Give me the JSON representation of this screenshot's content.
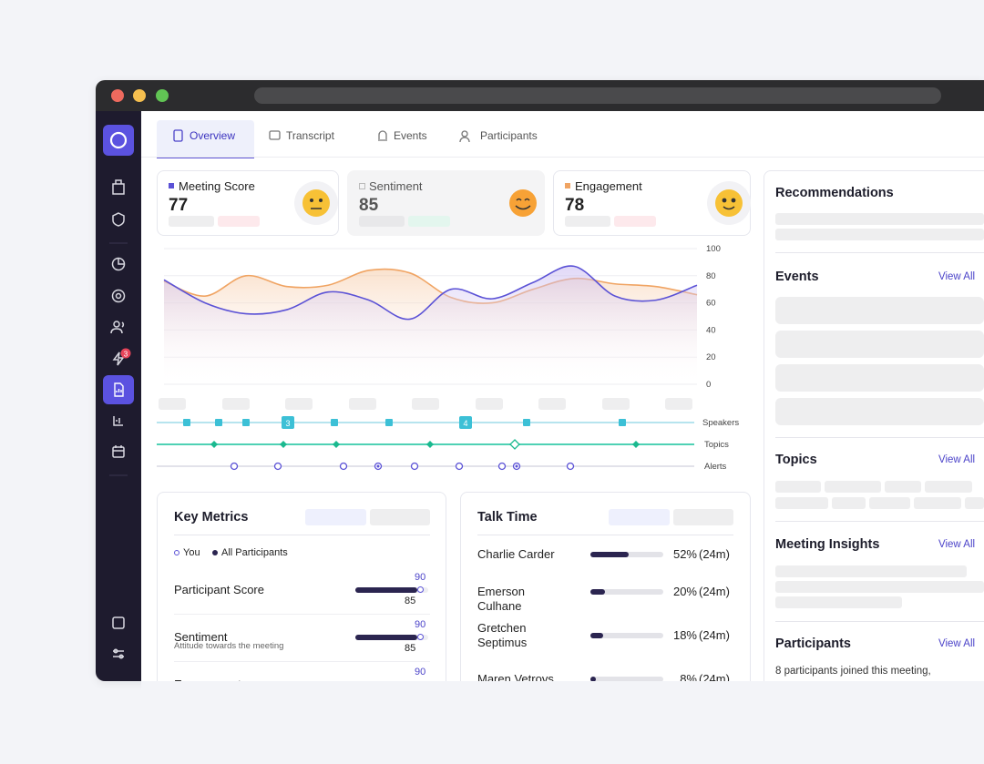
{
  "sidebar_badge": 3,
  "tabs": [
    "Overview",
    "Transcript",
    "Events",
    "Participants"
  ],
  "score_cards": [
    {
      "label": "Meeting Score",
      "value": 77
    },
    {
      "label": "Sentiment",
      "value": 85
    },
    {
      "label": "Engagement",
      "value": 78
    }
  ],
  "chart_data": {
    "type": "line",
    "categories": [
      null,
      null,
      null,
      null,
      null,
      null,
      null,
      null,
      null,
      null,
      null,
      null,
      null,
      null
    ],
    "series": [
      {
        "color": "#5b52d6",
        "values": [
          77,
          60,
          52,
          55,
          68,
          62,
          48,
          70,
          63,
          75,
          87,
          65,
          62,
          73
        ]
      },
      {
        "color": "#f0a463",
        "values": [
          76,
          65,
          80,
          72,
          73,
          84,
          82,
          64,
          60,
          70,
          78,
          74,
          72,
          66
        ]
      }
    ],
    "ylim": [
      0,
      100
    ],
    "yticks": [
      0,
      20,
      40,
      60,
      80,
      100
    ],
    "grid": true
  },
  "tracks": {
    "labels": [
      "Speakers",
      "Topics",
      "Alerts"
    ],
    "speaker_badges": [
      3,
      4
    ]
  },
  "key_metrics": {
    "title": "Key Metrics",
    "legend": [
      "You",
      "All Participants"
    ],
    "rows": [
      {
        "label": "Participant Score",
        "you": 90,
        "all": 85
      },
      {
        "label": "Sentiment",
        "sublabel": "Attitude towards the meeting",
        "you": 90,
        "all": 85
      },
      {
        "label": "Engagement",
        "you": 90
      }
    ]
  },
  "talk_time": {
    "title": "Talk Time",
    "rows": [
      {
        "name": "Charlie Carder",
        "share": {
          "value": 52,
          "label": "52%"
        },
        "duration": "(24m)"
      },
      {
        "name": "Emerson Culhane",
        "share": {
          "value": 20,
          "label": "20%"
        },
        "duration": "(24m)"
      },
      {
        "name": "Gretchen Septimus",
        "share": {
          "value": 18,
          "label": "18%"
        },
        "duration": "(24m)"
      },
      {
        "name": "Maren Vetrovs",
        "share": {
          "value": 8,
          "label": "8%"
        },
        "duration": "(24m)"
      }
    ]
  },
  "side_panel": {
    "recommendations": "Recommendations",
    "events": "Events",
    "topics": "Topics",
    "insights": "Meeting Insights",
    "participants": "Participants",
    "view_all": "View All",
    "participants_note": "8 participants joined this meeting,"
  }
}
